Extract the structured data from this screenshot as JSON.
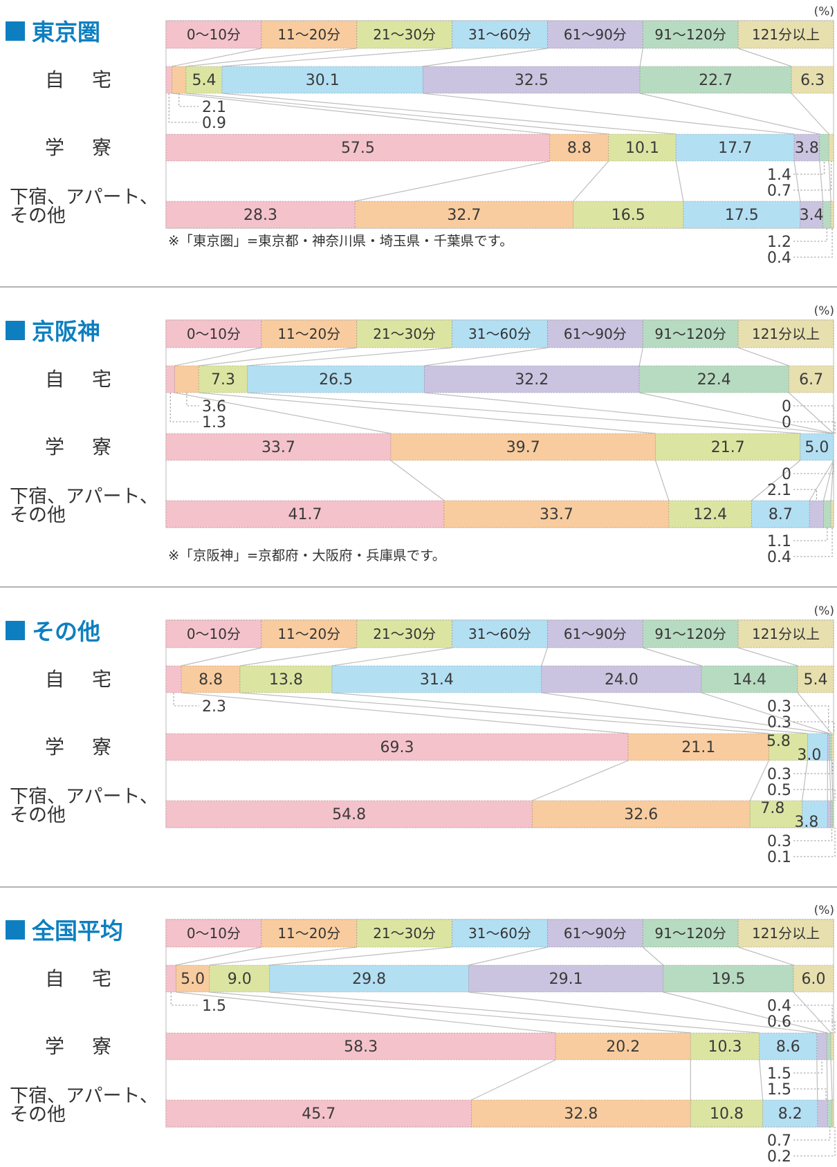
{
  "unit_label": "(%)",
  "accent_color": "#0d7fc0",
  "palette": [
    "#f4c2cb",
    "#f8cc9e",
    "#dbe5a1",
    "#b3dff3",
    "#cac4e0",
    "#b7dbc1",
    "#e7dfae"
  ],
  "legend": [
    "0〜10分",
    "11〜20分",
    "21〜30分",
    "31〜60分",
    "61〜90分",
    "91〜120分",
    "121分以上"
  ],
  "chart_data": [
    {
      "type": "bar",
      "orientation": "horizontal",
      "stacked": true,
      "unit": "%",
      "title": "東京圏",
      "categories": [
        "0〜10分",
        "11〜20分",
        "21〜30分",
        "31〜60分",
        "61〜90分",
        "91〜120分",
        "121分以上"
      ],
      "rows": [
        {
          "label": "自　宅",
          "values": [
            0.9,
            2.1,
            5.4,
            30.1,
            32.5,
            22.7,
            6.3
          ],
          "inside_labels": [
            null,
            null,
            "5.4",
            "30.1",
            "32.5",
            "22.7",
            "6.3"
          ]
        },
        {
          "label": "学　寮",
          "values": [
            57.5,
            8.8,
            10.1,
            17.7,
            3.8,
            1.4,
            0.7
          ],
          "inside_labels": [
            "57.5",
            "8.8",
            "10.1",
            "17.7",
            "3.8",
            null,
            null
          ]
        },
        {
          "label": "下宿、アパート、その他",
          "label_lines": [
            "下宿、アパート、",
            "その他"
          ],
          "values": [
            28.3,
            32.7,
            16.5,
            17.5,
            3.4,
            1.2,
            0.4
          ],
          "inside_labels": [
            "28.3",
            "32.7",
            "16.5",
            "17.5",
            "3.4",
            null,
            null
          ]
        }
      ],
      "callouts": [
        {
          "gap": 1,
          "side": "left",
          "dir": "up",
          "row": 0,
          "seg": 1,
          "value": "2.1"
        },
        {
          "gap": 1,
          "side": "left",
          "dir": "up",
          "row": 0,
          "seg": 0,
          "value": "0.9"
        },
        {
          "gap": 2,
          "side": "right",
          "dir": "up",
          "row": 1,
          "seg": 5,
          "value": "1.4"
        },
        {
          "gap": 2,
          "side": "right",
          "dir": "up",
          "row": 1,
          "seg": 6,
          "value": "0.7"
        },
        {
          "gap": 3,
          "side": "right",
          "dir": "up",
          "row": 2,
          "seg": 5,
          "value": "1.2"
        },
        {
          "gap": 3,
          "side": "right",
          "dir": "up",
          "row": 2,
          "seg": 6,
          "value": "0.4"
        }
      ],
      "footnote": "※「東京圏」=東京都・神奈川県・埼玉県・千葉県です。"
    },
    {
      "type": "bar",
      "orientation": "horizontal",
      "stacked": true,
      "unit": "%",
      "title": "京阪神",
      "categories": [
        "0〜10分",
        "11〜20分",
        "21〜30分",
        "31〜60分",
        "61〜90分",
        "91〜120分",
        "121分以上"
      ],
      "rows": [
        {
          "label": "自　宅",
          "values": [
            1.3,
            3.6,
            7.3,
            26.5,
            32.2,
            22.4,
            6.7
          ],
          "inside_labels": [
            null,
            null,
            "7.3",
            "26.5",
            "32.2",
            "22.4",
            "6.7"
          ]
        },
        {
          "label": "学　寮",
          "values": [
            33.7,
            39.7,
            21.7,
            5.0,
            0,
            0,
            0
          ],
          "inside_labels": [
            "33.7",
            "39.7",
            "21.7",
            "5.0",
            null,
            null,
            null
          ]
        },
        {
          "label": "下宿、アパート、その他",
          "label_lines": [
            "下宿、アパート、",
            "その他"
          ],
          "values": [
            41.7,
            33.7,
            12.4,
            8.7,
            2.1,
            1.1,
            0.4
          ],
          "inside_labels": [
            "41.7",
            "33.7",
            "12.4",
            "8.7",
            null,
            null,
            null
          ]
        }
      ],
      "callouts": [
        {
          "gap": 1,
          "side": "left",
          "dir": "up",
          "row": 0,
          "seg": 1,
          "value": "3.6"
        },
        {
          "gap": 1,
          "side": "left",
          "dir": "up",
          "row": 0,
          "seg": 0,
          "value": "1.3"
        },
        {
          "gap": 1,
          "side": "right",
          "dir": "down",
          "row": 1,
          "seg": 4,
          "value": "0"
        },
        {
          "gap": 1,
          "side": "right",
          "dir": "down",
          "row": 1,
          "seg": 5,
          "value": "0"
        },
        {
          "gap": 2,
          "side": "right",
          "dir": "up",
          "row": 1,
          "seg": 6,
          "value": "0"
        },
        {
          "gap": 2,
          "side": "right",
          "dir": "down",
          "row": 2,
          "seg": 4,
          "value": "2.1"
        },
        {
          "gap": 3,
          "side": "right",
          "dir": "up",
          "row": 2,
          "seg": 5,
          "value": "1.1"
        },
        {
          "gap": 3,
          "side": "right",
          "dir": "up",
          "row": 2,
          "seg": 6,
          "value": "0.4"
        }
      ],
      "footnote": "※「京阪神」=京都府・大阪府・兵庫県です。"
    },
    {
      "type": "bar",
      "orientation": "horizontal",
      "stacked": true,
      "unit": "%",
      "title": "その他",
      "categories": [
        "0〜10分",
        "11〜20分",
        "21〜30分",
        "31〜60分",
        "61〜90分",
        "91〜120分",
        "121分以上"
      ],
      "rows": [
        {
          "label": "自　宅",
          "values": [
            2.3,
            8.8,
            13.8,
            31.4,
            24.0,
            14.4,
            5.4
          ],
          "inside_labels": [
            null,
            "8.8",
            "13.8",
            "31.4",
            "24.0",
            "14.4",
            "5.4"
          ]
        },
        {
          "label": "学　寮",
          "values": [
            69.3,
            21.1,
            5.8,
            3.0,
            0.3,
            0.3,
            0.3
          ],
          "inside_labels": [
            "69.3",
            "21.1",
            "5.8",
            "3.0",
            null,
            null,
            null
          ],
          "nudges": {
            "2": [
              -14,
              -9
            ],
            "3": [
              -12,
              11
            ]
          }
        },
        {
          "label": "下宿、アパート、その他",
          "label_lines": [
            "下宿、アパート、",
            "その他"
          ],
          "values": [
            54.8,
            32.6,
            7.8,
            3.8,
            0.5,
            0.3,
            0.1
          ],
          "inside_labels": [
            "54.8",
            "32.6",
            "7.8",
            "3.8",
            null,
            null,
            null
          ],
          "nudges": {
            "2": [
              -5,
              -9
            ],
            "3": [
              -12,
              11
            ]
          }
        }
      ],
      "callouts": [
        {
          "gap": 1,
          "side": "left",
          "dir": "up",
          "row": 0,
          "seg": 0,
          "value": "2.3"
        },
        {
          "gap": 1,
          "side": "right",
          "dir": "down",
          "row": 1,
          "seg": 4,
          "value": "0.3"
        },
        {
          "gap": 1,
          "side": "right",
          "dir": "down",
          "row": 1,
          "seg": 5,
          "value": "0.3"
        },
        {
          "gap": 2,
          "side": "right",
          "dir": "up",
          "row": 1,
          "seg": 6,
          "value": "0.3"
        },
        {
          "gap": 2,
          "side": "right",
          "dir": "down",
          "row": 2,
          "seg": 4,
          "value": "0.5"
        },
        {
          "gap": 3,
          "side": "right",
          "dir": "up",
          "row": 2,
          "seg": 5,
          "value": "0.3"
        },
        {
          "gap": 3,
          "side": "right",
          "dir": "up",
          "row": 2,
          "seg": 6,
          "value": "0.1"
        }
      ],
      "footnote": null
    },
    {
      "type": "bar",
      "orientation": "horizontal",
      "stacked": true,
      "unit": "%",
      "title": "全国平均",
      "categories": [
        "0〜10分",
        "11〜20分",
        "21〜30分",
        "31〜60分",
        "61〜90分",
        "91〜120分",
        "121分以上"
      ],
      "rows": [
        {
          "label": "自　宅",
          "values": [
            1.5,
            5.0,
            9.0,
            29.8,
            29.1,
            19.5,
            6.0
          ],
          "inside_labels": [
            null,
            "5.0",
            "9.0",
            "29.8",
            "29.1",
            "19.5",
            "6.0"
          ]
        },
        {
          "label": "学　寮",
          "values": [
            58.3,
            20.2,
            10.3,
            8.6,
            1.5,
            0.6,
            0.4
          ],
          "inside_labels": [
            "58.3",
            "20.2",
            "10.3",
            "8.6",
            null,
            null,
            null
          ]
        },
        {
          "label": "下宿、アパート、その他",
          "label_lines": [
            "下宿、アパート、",
            "その他"
          ],
          "values": [
            45.7,
            32.8,
            10.8,
            8.2,
            1.5,
            0.7,
            0.2
          ],
          "inside_labels": [
            "45.7",
            "32.8",
            "10.8",
            "8.2",
            null,
            null,
            null
          ]
        }
      ],
      "callouts": [
        {
          "gap": 1,
          "side": "left",
          "dir": "up",
          "row": 0,
          "seg": 0,
          "value": "1.5"
        },
        {
          "gap": 1,
          "side": "right",
          "dir": "down",
          "row": 1,
          "seg": 6,
          "value": "0.4"
        },
        {
          "gap": 1,
          "side": "right",
          "dir": "down",
          "row": 1,
          "seg": 5,
          "value": "0.6"
        },
        {
          "gap": 2,
          "side": "right",
          "dir": "up",
          "row": 1,
          "seg": 4,
          "value": "1.5"
        },
        {
          "gap": 2,
          "side": "right",
          "dir": "down",
          "row": 2,
          "seg": 4,
          "value": "1.5"
        },
        {
          "gap": 3,
          "side": "right",
          "dir": "up",
          "row": 2,
          "seg": 5,
          "value": "0.7"
        },
        {
          "gap": 3,
          "side": "right",
          "dir": "up",
          "row": 2,
          "seg": 6,
          "value": "0.2"
        }
      ],
      "footnote": null
    }
  ]
}
